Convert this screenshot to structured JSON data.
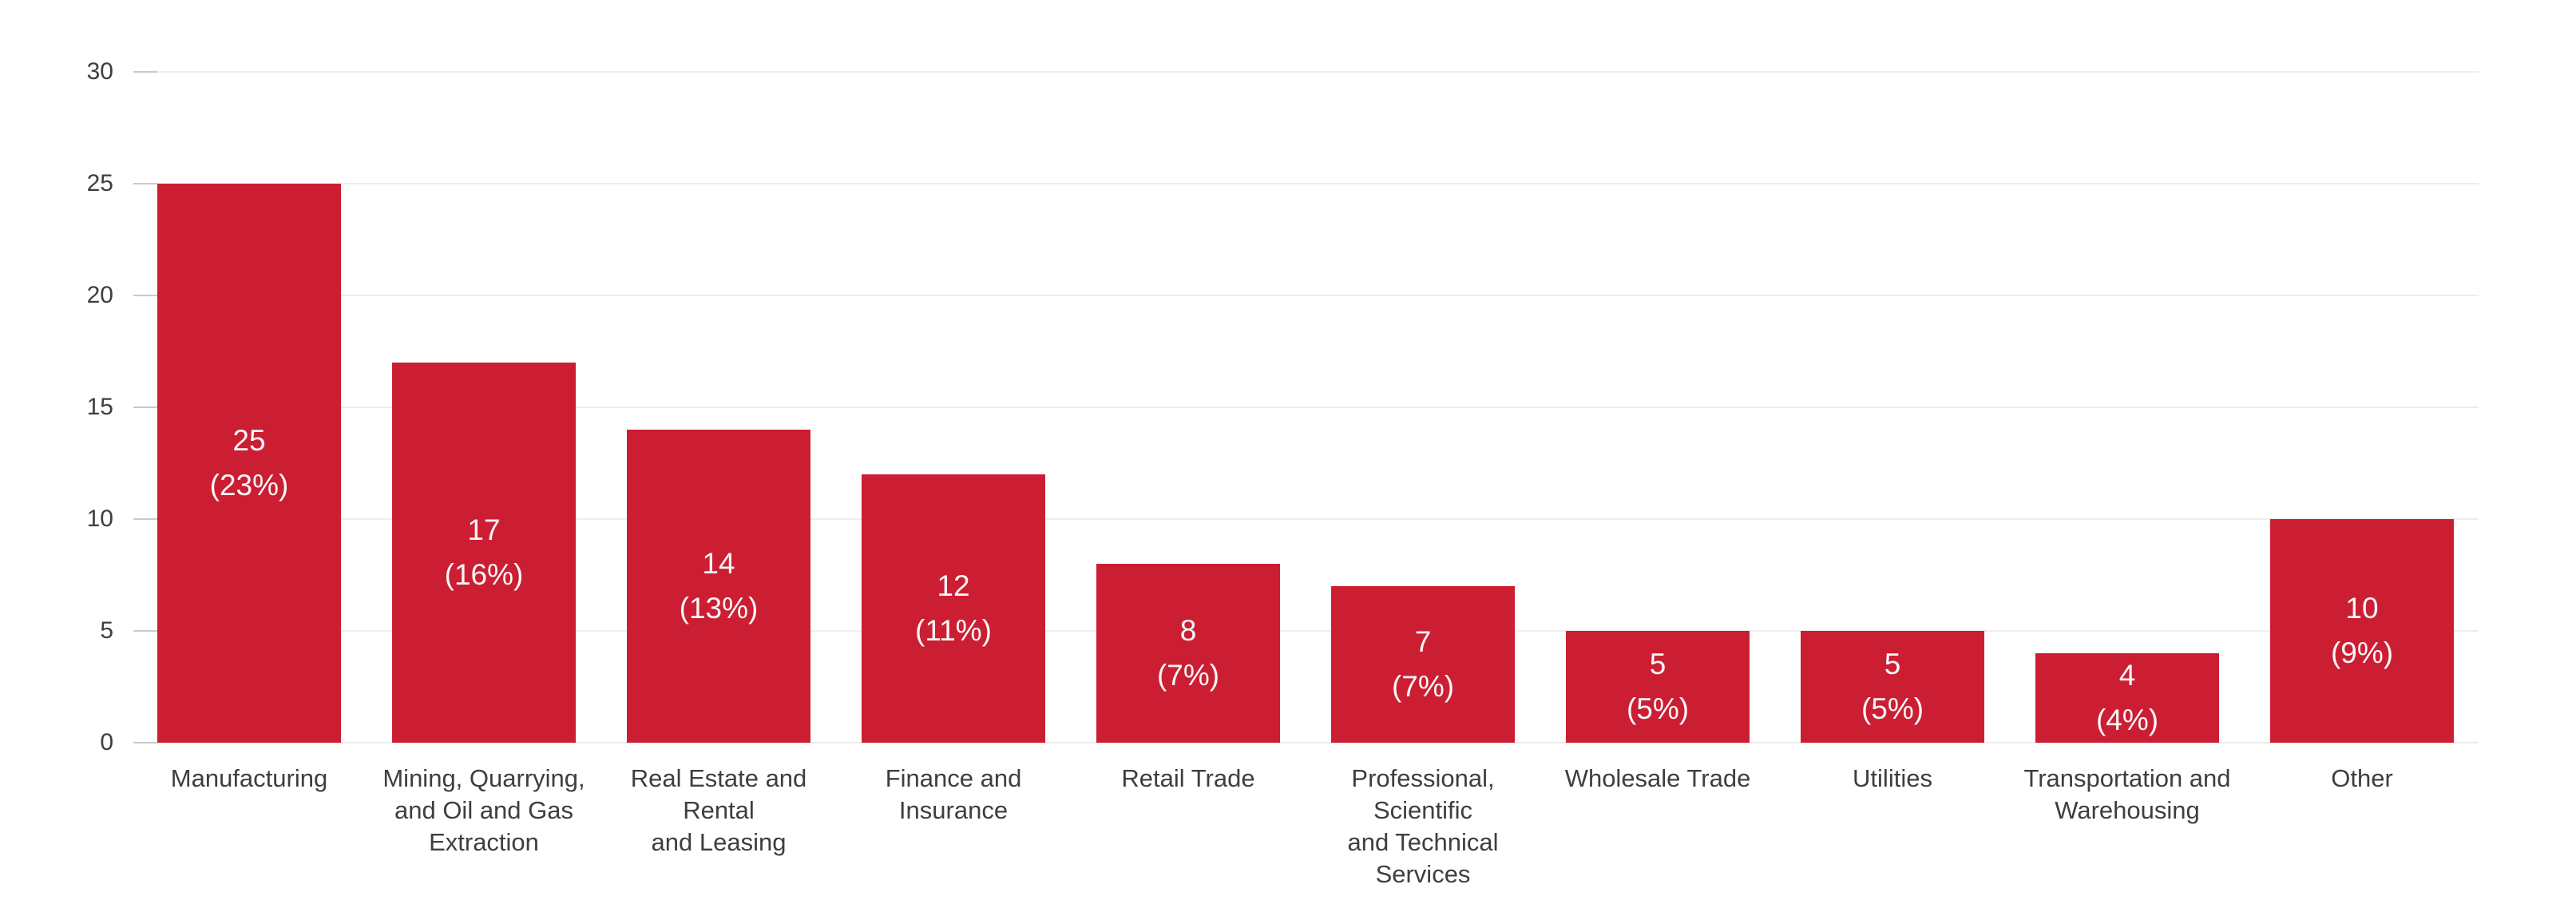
{
  "chart_data": {
    "type": "bar",
    "title": "",
    "xlabel": "",
    "ylabel": "",
    "categories": [
      "Manufacturing",
      "Mining, Quarrying,\nand Oil and Gas\nExtraction",
      "Real Estate and Rental\nand Leasing",
      "Finance and\nInsurance",
      "Retail Trade",
      "Professional, Scientific\nand Technical Services",
      "Wholesale Trade",
      "Utilities",
      "Transportation and\nWarehousing",
      "Other"
    ],
    "values": [
      25,
      17,
      14,
      12,
      8,
      7,
      5,
      5,
      4,
      10
    ],
    "percent_labels": [
      "23%",
      "16%",
      "13%",
      "11%",
      "7%",
      "7%",
      "5%",
      "5%",
      "4%",
      "9%"
    ],
    "bar_labels": [
      "25\n(23%)",
      "17\n(16%)",
      "14\n(13%)",
      "12\n(11%)",
      "8\n(7%)",
      "7\n(7%)",
      "5\n(5%)",
      "5\n(5%)",
      "4\n(4%)",
      "10\n(9%)"
    ],
    "ylim": [
      0,
      30
    ],
    "yticks": [
      0,
      5,
      10,
      15,
      20,
      25,
      30
    ],
    "grid": "horizontal",
    "legend_position": "none",
    "colors": {
      "bar": "#cc1e33",
      "bar_label_text": "#f7f7f7",
      "axis_text": "#3e3e3e",
      "gridline": "#ededed",
      "tick_dash": "#c9c9c9",
      "background": "#ffffff"
    }
  }
}
